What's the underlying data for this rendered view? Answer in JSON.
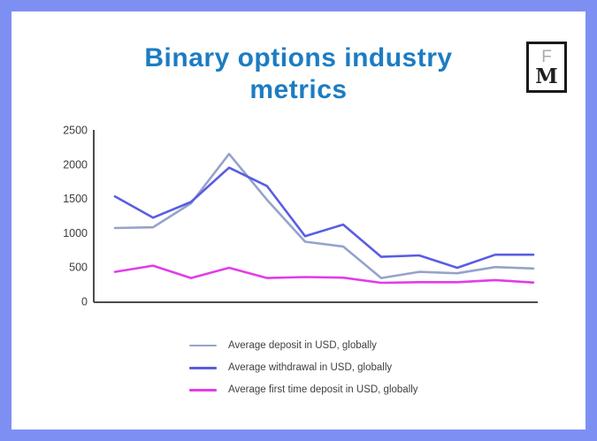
{
  "page": {
    "border_color": "#7d8ff3",
    "card_background": "#ffffff",
    "title_color": "#1d7cc2",
    "axis_color": "#4c4c4c",
    "tick_label_color": "#3c3c3c"
  },
  "header": {
    "title_line1": "Binary options industry",
    "title_line2": "metrics"
  },
  "logo": {
    "letter_top": "F",
    "letter_bottom": "M"
  },
  "chart_data": {
    "type": "line",
    "title": "Binary options industry metrics",
    "x": [
      1,
      2,
      3,
      4,
      5,
      6,
      7,
      8,
      9,
      10,
      11,
      12
    ],
    "x_tick_labels_visible": false,
    "xlabel": "",
    "ylabel": "",
    "ylim": [
      0,
      2500
    ],
    "yticks": [
      0,
      500,
      1000,
      1500,
      2000,
      2500
    ],
    "grid": false,
    "legend_position": "bottom",
    "series": [
      {
        "name": "Average deposit in USD, globally",
        "color": "#95a3cb",
        "values": [
          1070,
          1080,
          1430,
          2150,
          1480,
          870,
          800,
          340,
          430,
          410,
          500,
          480
        ]
      },
      {
        "name": "Average withdrawal in USD, globally",
        "color": "#5a5de2",
        "values": [
          1530,
          1220,
          1450,
          1950,
          1680,
          950,
          1120,
          650,
          670,
          490,
          680,
          680
        ]
      },
      {
        "name": "Average first time deposit in USD, globally",
        "color": "#e23ce8",
        "values": [
          430,
          520,
          340,
          490,
          340,
          355,
          345,
          270,
          280,
          280,
          310,
          275
        ]
      }
    ]
  }
}
